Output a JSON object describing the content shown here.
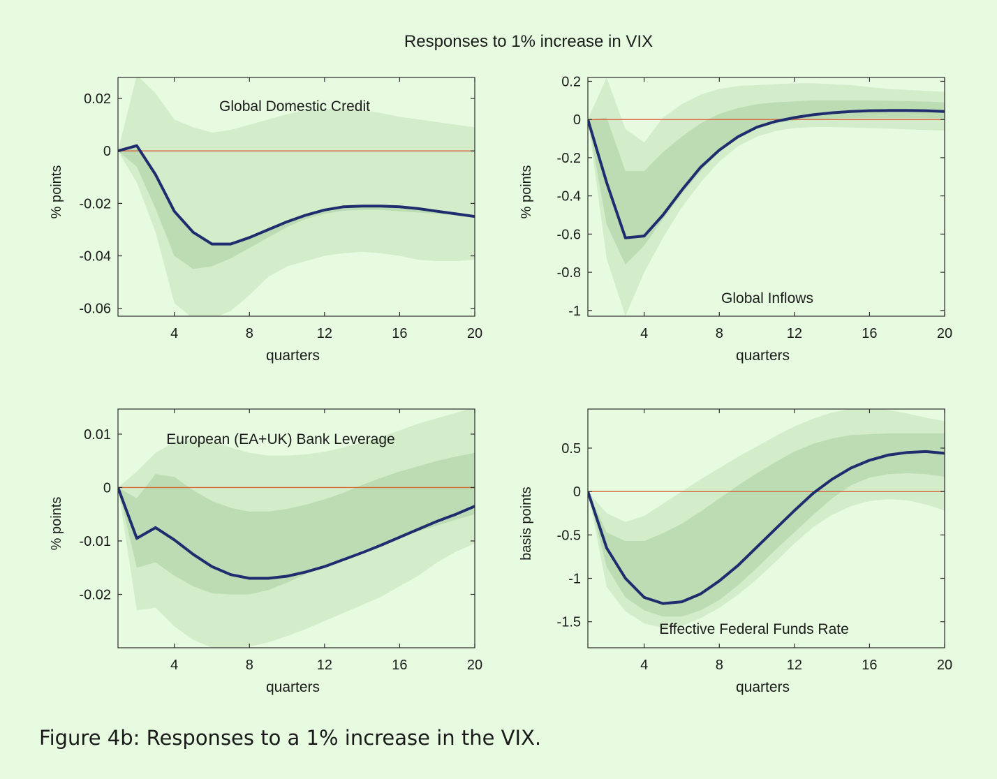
{
  "figure": {
    "title": "Responses to 1% increase in VIX",
    "caption": "Figure 4b: Responses to a 1% increase in the VIX."
  },
  "colors": {
    "background": "#e7fbe1",
    "outer_band": "#d3edcb",
    "inner_band": "#bcdcb3",
    "response_line": "#1f2d6e",
    "zero_line": "#d9623b"
  },
  "chart_data": [
    {
      "type": "line",
      "title": "Global Domestic Credit",
      "xlabel": "quarters",
      "ylabel": "% points",
      "xlim": [
        1,
        20
      ],
      "ylim": [
        -0.063,
        0.028
      ],
      "xticks": [
        4,
        8,
        12,
        16,
        20
      ],
      "yticks": [
        -0.06,
        -0.04,
        -0.02,
        0,
        0.02
      ],
      "ytick_labels": [
        "-0.06",
        "-0.04",
        "-0.02",
        "0",
        "0.02"
      ],
      "x": [
        1,
        2,
        3,
        4,
        5,
        6,
        7,
        8,
        9,
        10,
        11,
        12,
        13,
        14,
        15,
        16,
        17,
        18,
        19,
        20
      ],
      "series": [
        {
          "values": [
            0,
            0.002,
            -0.009,
            -0.023,
            -0.031,
            -0.0355,
            -0.0355,
            -0.033,
            -0.03,
            -0.027,
            -0.0245,
            -0.0225,
            -0.0213,
            -0.021,
            -0.021,
            -0.0213,
            -0.022,
            -0.023,
            -0.024,
            -0.025
          ]
        }
      ],
      "bands": [
        {
          "lower": [
            0,
            -0.012,
            -0.031,
            -0.058,
            -0.064,
            -0.064,
            -0.061,
            -0.055,
            -0.048,
            -0.044,
            -0.042,
            -0.04,
            -0.039,
            -0.0385,
            -0.039,
            -0.04,
            -0.0415,
            -0.042,
            -0.042,
            -0.0415
          ],
          "upper": [
            0,
            0.029,
            0.022,
            0.012,
            0.009,
            0.007,
            0.008,
            0.01,
            0.012,
            0.014,
            0.0155,
            0.016,
            0.016,
            0.0155,
            0.0145,
            0.013,
            0.012,
            0.011,
            0.01,
            0.009
          ]
        },
        {
          "lower": [
            0,
            -0.006,
            -0.022,
            -0.04,
            -0.045,
            -0.044,
            -0.041,
            -0.037,
            -0.033,
            -0.029,
            -0.026,
            -0.024,
            -0.0228,
            -0.0225,
            -0.0225,
            -0.023,
            -0.0235,
            -0.024,
            -0.0245,
            -0.025
          ]
        },
        {}
      ]
    },
    {
      "type": "line",
      "title": "Global Inflows",
      "xlabel": "quarters",
      "ylabel": "% points",
      "xlim": [
        1,
        20
      ],
      "ylim": [
        -1.03,
        0.22
      ],
      "xticks": [
        4,
        8,
        12,
        16,
        20
      ],
      "yticks": [
        -1,
        -0.8,
        -0.6,
        -0.4,
        -0.2,
        0,
        0.2
      ],
      "ytick_labels": [
        "-1",
        "-0.8",
        "-0.6",
        "-0.4",
        "-0.2",
        "0",
        "0.2"
      ],
      "x": [
        1,
        2,
        3,
        4,
        5,
        6,
        7,
        8,
        9,
        10,
        11,
        12,
        13,
        14,
        15,
        16,
        17,
        18,
        19,
        20
      ],
      "series": [
        {
          "values": [
            0,
            -0.33,
            -0.62,
            -0.61,
            -0.5,
            -0.37,
            -0.25,
            -0.16,
            -0.09,
            -0.04,
            -0.01,
            0.01,
            0.025,
            0.035,
            0.042,
            0.046,
            0.047,
            0.047,
            0.046,
            0.042
          ]
        }
      ],
      "bands": [
        {
          "lower": [
            0,
            -0.73,
            -1.03,
            -0.8,
            -0.62,
            -0.46,
            -0.33,
            -0.22,
            -0.14,
            -0.09,
            -0.06,
            -0.045,
            -0.04,
            -0.04,
            -0.042,
            -0.045,
            -0.048,
            -0.052,
            -0.055,
            -0.058
          ],
          "upper": [
            0,
            0.22,
            -0.05,
            -0.12,
            0.01,
            0.08,
            0.13,
            0.16,
            0.175,
            0.18,
            0.185,
            0.19,
            0.19,
            0.185,
            0.18,
            0.17,
            0.16,
            0.155,
            0.15,
            0.145
          ]
        },
        {
          "lower": [
            0,
            -0.55,
            -0.76,
            -0.66,
            -0.52,
            -0.39,
            -0.27,
            -0.17,
            -0.1,
            -0.05,
            -0.02,
            -0.005,
            0,
            0.005,
            0.007,
            0.008,
            0.008,
            0.008,
            0.007,
            0.005
          ],
          "upper": [
            0,
            0.01,
            -0.27,
            -0.27,
            -0.17,
            -0.09,
            -0.02,
            0.03,
            0.06,
            0.08,
            0.09,
            0.095,
            0.1,
            0.1,
            0.1,
            0.1,
            0.098,
            0.096,
            0.094,
            0.09
          ]
        }
      ]
    },
    {
      "type": "line",
      "title": "European (EA+UK) Bank Leverage",
      "xlabel": "quarters",
      "ylabel": "% points",
      "xlim": [
        1,
        20
      ],
      "ylim": [
        -0.03,
        0.0147
      ],
      "xticks": [
        4,
        8,
        12,
        16,
        20
      ],
      "yticks": [
        -0.02,
        -0.01,
        0,
        0.01
      ],
      "ytick_labels": [
        "-0.02",
        "-0.01",
        "0",
        "0.01"
      ],
      "x": [
        1,
        2,
        3,
        4,
        5,
        6,
        7,
        8,
        9,
        10,
        11,
        12,
        13,
        14,
        15,
        16,
        17,
        18,
        19,
        20
      ],
      "series": [
        {
          "values": [
            0,
            -0.0095,
            -0.0075,
            -0.0098,
            -0.0125,
            -0.0148,
            -0.0163,
            -0.017,
            -0.017,
            -0.0166,
            -0.0158,
            -0.0148,
            -0.0135,
            -0.0122,
            -0.0108,
            -0.0093,
            -0.0078,
            -0.0063,
            -0.005,
            -0.0035
          ]
        }
      ],
      "bands": [
        {
          "lower": [
            0,
            -0.023,
            -0.0225,
            -0.026,
            -0.0285,
            -0.03,
            -0.03,
            -0.0298,
            -0.029,
            -0.0278,
            -0.0265,
            -0.025,
            -0.0235,
            -0.022,
            -0.0205,
            -0.0185,
            -0.0165,
            -0.014,
            -0.012,
            -0.0105
          ],
          "upper": [
            0,
            0.003,
            0.0065,
            0.0085,
            0.009,
            0.0085,
            0.0075,
            0.0065,
            0.006,
            0.006,
            0.0062,
            0.0067,
            0.0075,
            0.0085,
            0.0095,
            0.0107,
            0.012,
            0.013,
            0.014,
            0.015
          ]
        },
        {
          "lower": [
            0,
            -0.015,
            -0.014,
            -0.0165,
            -0.0185,
            -0.0198,
            -0.02,
            -0.02,
            -0.0192,
            -0.0178,
            -0.0162,
            -0.0147,
            -0.0132,
            -0.0118,
            -0.0105,
            -0.0093,
            -0.0082,
            -0.0071,
            -0.006,
            -0.005
          ],
          "upper": [
            0,
            -0.002,
            0.0025,
            0.002,
            -0.0005,
            -0.0025,
            -0.0038,
            -0.0045,
            -0.0045,
            -0.004,
            -0.0032,
            -0.0022,
            -0.001,
            0.0005,
            0.0018,
            0.003,
            0.004,
            0.005,
            0.0058,
            0.0065
          ]
        }
      ]
    },
    {
      "type": "line",
      "title": "Effective Federal Funds Rate",
      "xlabel": "quarters",
      "ylabel": "basis points",
      "xlim": [
        1,
        20
      ],
      "ylim": [
        -1.8,
        0.95
      ],
      "xticks": [
        4,
        8,
        12,
        16,
        20
      ],
      "yticks": [
        -1.5,
        -1,
        -0.5,
        0,
        0.5
      ],
      "ytick_labels": [
        "-1.5",
        "-1",
        "-0.5",
        "0",
        "0.5"
      ],
      "x": [
        1,
        2,
        3,
        4,
        5,
        6,
        7,
        8,
        9,
        10,
        11,
        12,
        13,
        14,
        15,
        16,
        17,
        18,
        19,
        20
      ],
      "series": [
        {
          "values": [
            0,
            -0.65,
            -1.0,
            -1.22,
            -1.29,
            -1.27,
            -1.18,
            -1.03,
            -0.85,
            -0.64,
            -0.43,
            -0.22,
            -0.02,
            0.14,
            0.27,
            0.36,
            0.42,
            0.45,
            0.46,
            0.44
          ]
        }
      ],
      "bands": [
        {
          "lower": [
            0,
            -1.1,
            -1.38,
            -1.52,
            -1.57,
            -1.55,
            -1.46,
            -1.34,
            -1.19,
            -1.01,
            -0.81,
            -0.6,
            -0.41,
            -0.27,
            -0.17,
            -0.11,
            -0.09,
            -0.1,
            -0.15,
            -0.22
          ],
          "upper": [
            0,
            -0.25,
            -0.35,
            -0.28,
            -0.14,
            0.0,
            0.14,
            0.27,
            0.4,
            0.52,
            0.64,
            0.75,
            0.84,
            0.91,
            0.95,
            0.96,
            0.94,
            0.9,
            0.85,
            0.81
          ]
        },
        {
          "lower": [
            0,
            -0.87,
            -1.22,
            -1.37,
            -1.44,
            -1.44,
            -1.37,
            -1.25,
            -1.08,
            -0.88,
            -0.67,
            -0.47,
            -0.27,
            -0.08,
            0.07,
            0.16,
            0.2,
            0.21,
            0.2,
            0.17
          ],
          "upper": [
            0,
            -0.47,
            -0.57,
            -0.57,
            -0.48,
            -0.37,
            -0.23,
            -0.08,
            0.07,
            0.21,
            0.34,
            0.46,
            0.55,
            0.61,
            0.65,
            0.66,
            0.67,
            0.67,
            0.67,
            0.67
          ]
        }
      ]
    }
  ]
}
